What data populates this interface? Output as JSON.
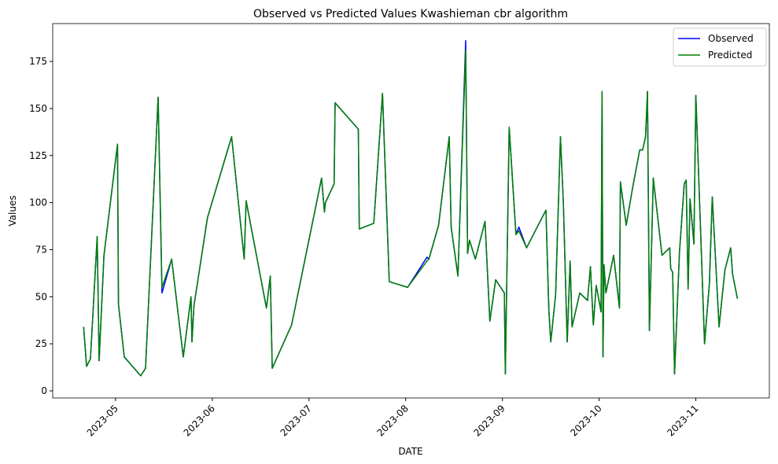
{
  "chart_data": {
    "type": "line",
    "title": "Observed vs Predicted Values Kwashieman cbr algorithm",
    "xlabel": "DATE",
    "ylabel": "Values",
    "x": [
      4.67,
      4.7,
      4.74,
      4.81,
      4.83,
      4.88,
      5.02,
      5.03,
      5.09,
      5.26,
      5.31,
      5.44,
      5.48,
      5.58,
      5.7,
      5.78,
      5.79,
      5.81,
      5.95,
      6.2,
      6.33,
      6.35,
      6.56,
      6.6,
      6.62,
      6.82,
      7.13,
      7.16,
      7.17,
      7.26,
      7.27,
      7.51,
      7.52,
      7.67,
      7.76,
      7.83,
      8.02,
      8.22,
      8.24,
      8.34,
      8.45,
      8.47,
      8.54,
      8.62,
      8.64,
      8.66,
      8.72,
      8.82,
      8.87,
      8.93,
      9.02,
      9.03,
      9.07,
      9.14,
      9.17,
      9.25,
      9.45,
      9.48,
      9.5,
      9.55,
      9.6,
      9.63,
      9.67,
      9.7,
      9.72,
      9.8,
      9.88,
      9.91,
      9.94,
      9.97,
      10.02,
      10.03,
      10.04,
      10.05,
      10.07,
      10.13,
      10.15,
      10.21,
      10.22,
      10.28,
      10.35,
      10.42,
      10.45,
      10.48,
      10.5,
      10.52,
      10.56,
      10.65,
      10.73,
      10.74,
      10.76,
      10.78,
      10.83,
      10.88,
      10.9,
      10.92,
      10.94,
      10.98,
      11.0,
      11.09,
      11.14,
      11.17,
      11.24,
      11.3,
      11.36,
      11.38,
      11.43
    ],
    "series": [
      {
        "name": "Observed",
        "color": "#0000ff",
        "values": [
          34,
          13,
          17,
          82,
          16,
          72,
          131,
          46,
          18,
          8,
          12,
          156,
          52,
          70,
          18,
          50,
          26,
          45,
          92,
          135,
          70,
          101,
          44,
          61,
          12,
          35,
          113,
          95,
          100,
          110,
          153,
          139,
          86,
          89,
          158,
          58,
          55,
          71,
          70,
          88,
          135,
          87,
          61,
          186,
          73,
          80,
          70,
          90,
          37,
          59,
          52,
          9,
          140,
          83,
          87,
          76,
          96,
          43,
          26,
          51,
          135,
          100,
          26,
          69,
          34,
          52,
          48,
          66,
          35,
          56,
          42,
          159,
          18,
          67,
          52,
          67,
          72,
          44,
          111,
          88,
          109,
          128,
          128,
          135,
          159,
          32,
          113,
          72,
          76,
          65,
          63,
          9,
          73,
          110,
          112,
          54,
          102,
          78,
          157,
          25,
          57,
          103,
          34,
          64,
          76,
          62,
          49
        ]
      },
      {
        "name": "Predicted",
        "color": "#008000",
        "values": [
          34,
          13,
          17,
          82,
          16,
          72,
          131,
          46,
          18,
          8,
          12,
          156,
          55,
          70,
          18,
          50,
          26,
          45,
          92,
          135,
          70,
          101,
          44,
          61,
          12,
          35,
          113,
          95,
          100,
          110,
          153,
          139,
          86,
          89,
          158,
          58,
          55,
          69,
          70,
          88,
          135,
          87,
          61,
          181,
          73,
          80,
          70,
          90,
          37,
          59,
          52,
          9,
          140,
          83,
          85,
          76,
          96,
          43,
          26,
          51,
          135,
          100,
          26,
          69,
          34,
          52,
          48,
          66,
          35,
          56,
          42,
          159,
          18,
          67,
          52,
          67,
          72,
          44,
          111,
          88,
          109,
          128,
          128,
          135,
          159,
          32,
          113,
          72,
          76,
          65,
          63,
          9,
          73,
          110,
          112,
          54,
          102,
          78,
          157,
          25,
          57,
          103,
          34,
          64,
          76,
          62,
          49
        ]
      }
    ],
    "xlim": [
      4.35,
      11.76
    ],
    "xticks": [
      {
        "value": 5,
        "label": "2023-05"
      },
      {
        "value": 6,
        "label": "2023-06"
      },
      {
        "value": 7,
        "label": "2023-07"
      },
      {
        "value": 8,
        "label": "2023-08"
      },
      {
        "value": 9,
        "label": "2023-09"
      },
      {
        "value": 10,
        "label": "2023-10"
      },
      {
        "value": 11,
        "label": "2023-11"
      }
    ],
    "ylim": [
      -3.76,
      195.1
    ],
    "yticks": [
      0,
      25,
      50,
      75,
      100,
      125,
      150,
      175
    ],
    "legend": "upper right"
  }
}
